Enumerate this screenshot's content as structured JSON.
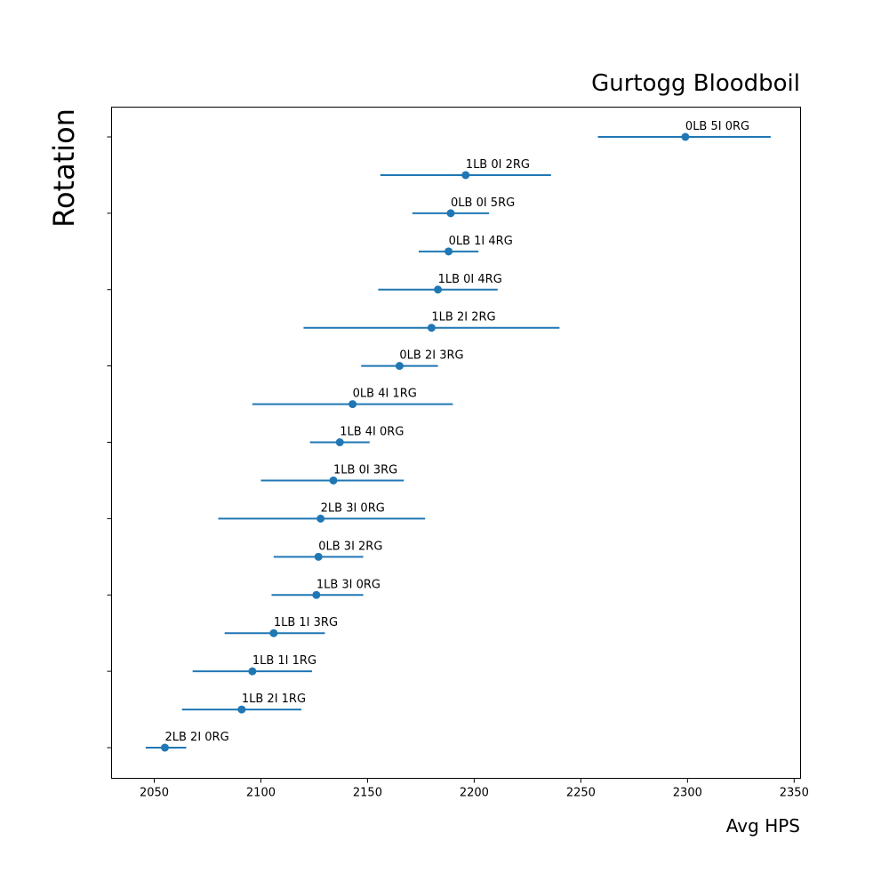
{
  "chart_data": {
    "type": "scatter",
    "title": "Gurtogg Bloodboil",
    "xlabel": "Avg HPS",
    "ylabel": "Rotation",
    "xlim": [
      2030,
      2353
    ],
    "x_ticks": [
      2050,
      2100,
      2150,
      2200,
      2250,
      2300,
      2350
    ],
    "grid": false,
    "legend": "none",
    "series_color": "#1f77b4",
    "points": [
      {
        "label": "2LB 2I 0RG",
        "value": 2055,
        "err_low": 2046,
        "err_high": 2065
      },
      {
        "label": "1LB 2I 1RG",
        "value": 2091,
        "err_low": 2063,
        "err_high": 2119
      },
      {
        "label": "1LB 1I 1RG",
        "value": 2096,
        "err_low": 2068,
        "err_high": 2124
      },
      {
        "label": "1LB 1I 3RG",
        "value": 2106,
        "err_low": 2083,
        "err_high": 2130
      },
      {
        "label": "1LB 3I 0RG",
        "value": 2126,
        "err_low": 2105,
        "err_high": 2148
      },
      {
        "label": "0LB 3I 2RG",
        "value": 2127,
        "err_low": 2106,
        "err_high": 2148
      },
      {
        "label": "2LB 3I 0RG",
        "value": 2128,
        "err_low": 2080,
        "err_high": 2177
      },
      {
        "label": "1LB 0I 3RG",
        "value": 2134,
        "err_low": 2100,
        "err_high": 2167
      },
      {
        "label": "1LB 4I 0RG",
        "value": 2137,
        "err_low": 2123,
        "err_high": 2151
      },
      {
        "label": "0LB 4I 1RG",
        "value": 2143,
        "err_low": 2096,
        "err_high": 2190
      },
      {
        "label": "0LB 2I 3RG",
        "value": 2165,
        "err_low": 2147,
        "err_high": 2183
      },
      {
        "label": "1LB 2I 2RG",
        "value": 2180,
        "err_low": 2120,
        "err_high": 2240
      },
      {
        "label": "1LB 0I 4RG",
        "value": 2183,
        "err_low": 2155,
        "err_high": 2211
      },
      {
        "label": "0LB 1I 4RG",
        "value": 2188,
        "err_low": 2174,
        "err_high": 2202
      },
      {
        "label": "0LB 0I 5RG",
        "value": 2189,
        "err_low": 2171,
        "err_high": 2207
      },
      {
        "label": "1LB 0I 2RG",
        "value": 2196,
        "err_low": 2156,
        "err_high": 2236
      },
      {
        "label": "0LB 5I 0RG",
        "value": 2299,
        "err_low": 2258,
        "err_high": 2339
      }
    ]
  }
}
